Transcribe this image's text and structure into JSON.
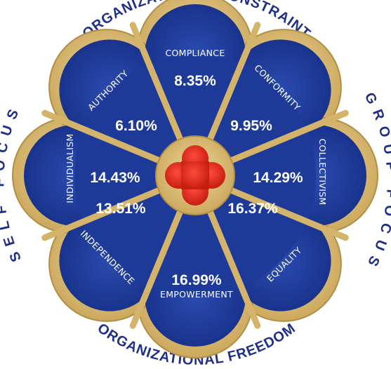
{
  "outer_labels": {
    "top": "ORGANIZATIONAL CONSTRAINT",
    "bottom": "ORGANIZATIONAL FREEDOM",
    "left": "SELF FOCUS",
    "right": "GROUP FOCUS"
  },
  "segments": [
    {
      "label": "COMPLIANCE",
      "value": "8.35%"
    },
    {
      "label": "CONFORMITY",
      "value": "9.95%"
    },
    {
      "label": "COLLECTIVISM",
      "value": "14.29%"
    },
    {
      "label": "EQUALITY",
      "value": "16.37%"
    },
    {
      "label": "EMPOWERMENT",
      "value": "16.99%"
    },
    {
      "label": "INDEPENDENCE",
      "value": "13.51%"
    },
    {
      "label": "INDIVIDUALISM",
      "value": "14.43%"
    },
    {
      "label": "AUTHORITY",
      "value": "6.10%"
    }
  ],
  "colors": {
    "petal_blue": "#1d3a99",
    "frame_gold": "#d4b46a",
    "center_red": "#d92a1e",
    "outer_text": "#1f2f8a"
  }
}
